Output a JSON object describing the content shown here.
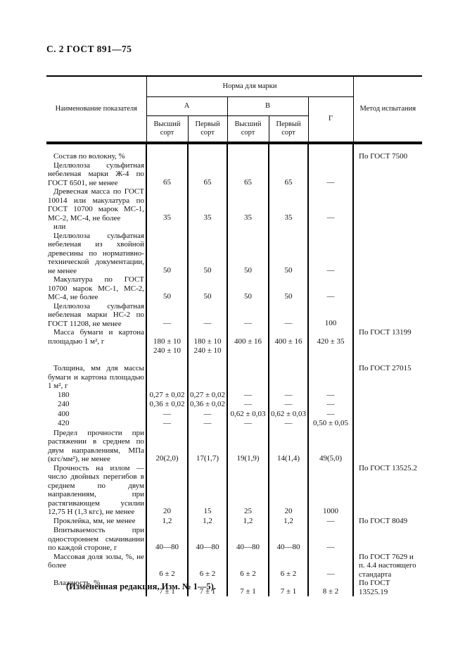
{
  "page": {
    "header": "С. 2 ГОСТ 891—75",
    "footer_note": "(Измененная редакция, Изм. № 1—5)."
  },
  "table": {
    "col_name_header": "Наименование показателя",
    "norm_group_header": "Норма для марки",
    "method_header": "Метод испытания",
    "brand_a": "А",
    "brand_b": "В",
    "brand_g": "Г",
    "grade_cols": [
      "Высший сорт",
      "Первый сорт",
      "Высший сорт",
      "Первый сорт"
    ],
    "rows": [
      {
        "name": "Состав по волокну, %",
        "values": [
          "",
          "",
          "",
          "",
          ""
        ],
        "method": "По ГОСТ 7500"
      },
      {
        "name": "Целлюлоза сульфитная небеленая марки Ж-4 по ГОСТ 6501, не менее",
        "values": [
          "65",
          "65",
          "65",
          "65",
          "—"
        ],
        "method": ""
      },
      {
        "name": "Древесная масса по ГОСТ 10014 или макулатура по ГОСТ 10700 марок МС-1, МС-2, МС-4, не более",
        "values": [
          "35",
          "35",
          "35",
          "35",
          "—"
        ],
        "method": ""
      },
      {
        "name": "или",
        "values": [
          "",
          "",
          "",
          "",
          ""
        ],
        "method": ""
      },
      {
        "name": "Целлюлоза сульфатная небеленая из хвойной древесины по нормативно-технической документации, не менее",
        "values": [
          "50",
          "50",
          "50",
          "50",
          "—"
        ],
        "method": ""
      },
      {
        "name": "Макулатура по ГОСТ 10700 марок МС-1, МС-2, МС-4, не более",
        "values": [
          "50",
          "50",
          "50",
          "50",
          "—"
        ],
        "method": ""
      },
      {
        "name": "Целлюлоза сульфатная небеленая марки НС-2 по ГОСТ 11208, не менее",
        "values": [
          "—",
          "—",
          "—",
          "—",
          "100"
        ],
        "method": ""
      },
      {
        "name": "Масса бумаги и картона площадью 1 м², г",
        "values": [
          "180 ± 10\n240 ± 10",
          "180 ± 10\n240 ± 10",
          "400 ± 16",
          "400 ± 16",
          "420 ± 35"
        ],
        "method": "По ГОСТ 13199"
      },
      {
        "name": "Толщина, мм для массы бумаги и картона площадью 1 м², г",
        "values": [
          "",
          "",
          "",
          "",
          ""
        ],
        "method": "По ГОСТ 27015"
      },
      {
        "name": "180",
        "values": [
          "0,27 ± 0,02",
          "0,27 ± 0,02",
          "—",
          "—",
          "—"
        ],
        "method": ""
      },
      {
        "name": "240",
        "values": [
          "0,36 ± 0,02",
          "0,36 ± 0,02",
          "—",
          "—",
          "—"
        ],
        "method": ""
      },
      {
        "name": "400",
        "values": [
          "—",
          "—",
          "0,62 ± 0,03",
          "0,62 ± 0,03",
          "—"
        ],
        "method": ""
      },
      {
        "name": "420",
        "values": [
          "—",
          "—",
          "—",
          "—",
          "0,50 ± 0,05"
        ],
        "method": ""
      },
      {
        "name": "Предел прочности при растяжении в среднем по двум направлениям, МПа (кгс/мм²), не менее",
        "values": [
          "20(2,0)",
          "17(1,7)",
          "19(1,9)",
          "14(1,4)",
          "49(5,0)"
        ],
        "method": ""
      },
      {
        "name": "Прочность на излом — число двойных перегибов в среднем по двум направлениям, при растягивающем усилии 12,75 Н (1,3 кгс), не менее",
        "values": [
          "20",
          "15",
          "25",
          "20",
          "1000"
        ],
        "method": "По ГОСТ 13525.2"
      },
      {
        "name": "Проклейка, мм, не менее",
        "values": [
          "1,2",
          "1,2",
          "1,2",
          "1,2",
          "—"
        ],
        "method": "По ГОСТ 8049"
      },
      {
        "name": "Впитываемость при одностороннем смачивании по каждой стороне, г",
        "values": [
          "40—80",
          "40—80",
          "40—80",
          "40—80",
          "—"
        ],
        "method": ""
      },
      {
        "name": "Массовая доля золы, %, не более",
        "values": [
          "6 ± 2",
          "6 ± 2",
          "6 ± 2",
          "6 ± 2",
          "—"
        ],
        "method": "По ГОСТ 7629 и п. 4.4 настоящего стандарта"
      },
      {
        "name": "Влажность, %",
        "values": [
          "7 ± 1",
          "7 ± 1",
          "7 ± 1",
          "7 ± 1",
          "8 ± 2"
        ],
        "method": "По ГОСТ 13525.19"
      }
    ]
  }
}
